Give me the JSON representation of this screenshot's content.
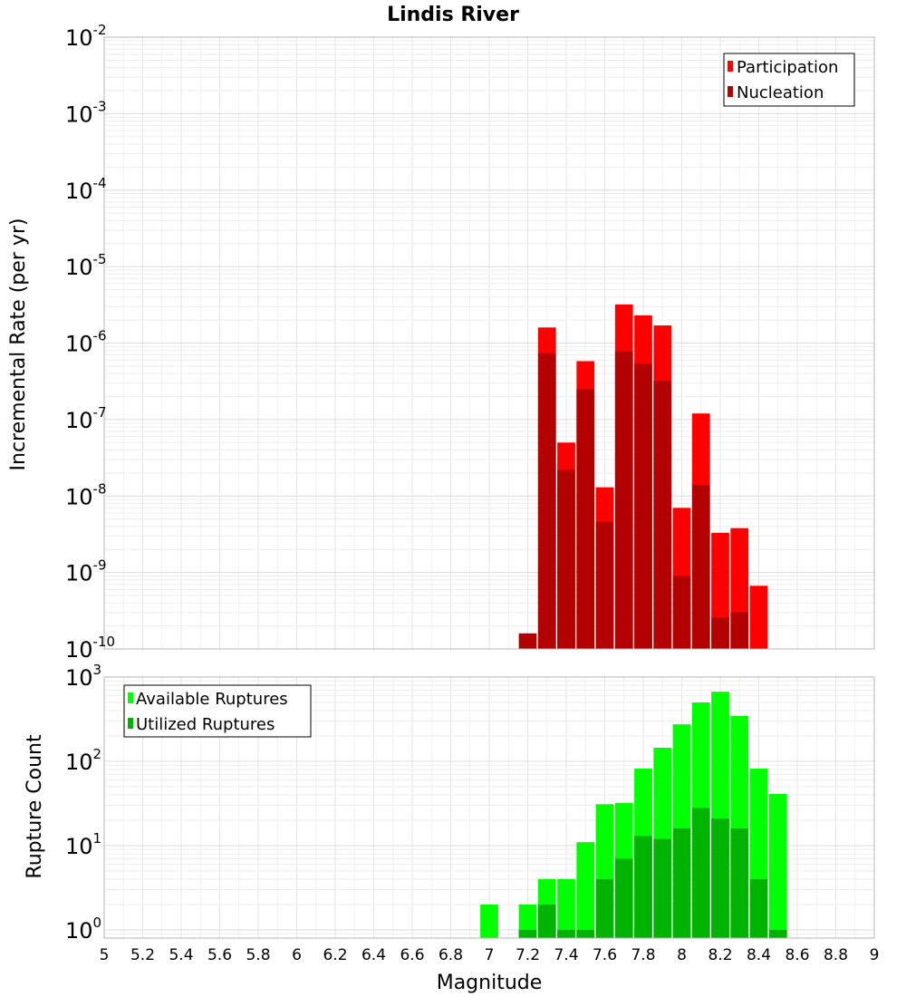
{
  "chart_data": [
    {
      "type": "bar",
      "title": "Lindis River",
      "ylabel": "Incremental Rate (per yr)",
      "yscale": "log",
      "ylim": [
        1e-10,
        0.01
      ],
      "xlim": [
        5,
        9
      ],
      "bin_width": 0.1,
      "grid": true,
      "legend_position": "top-right",
      "y_ticks": [
        {
          "base": "10",
          "exp": "-10"
        },
        {
          "base": "10",
          "exp": "-9"
        },
        {
          "base": "10",
          "exp": "-8"
        },
        {
          "base": "10",
          "exp": "-7"
        },
        {
          "base": "10",
          "exp": "-6"
        },
        {
          "base": "10",
          "exp": "-5"
        },
        {
          "base": "10",
          "exp": "-4"
        },
        {
          "base": "10",
          "exp": "-3"
        },
        {
          "base": "10",
          "exp": "-2"
        }
      ],
      "series": [
        {
          "name": "Participation",
          "color": "#ff0000",
          "x": [
            7.3,
            7.4,
            7.5,
            7.6,
            7.7,
            7.8,
            7.9,
            8.0,
            8.1,
            8.2,
            8.3,
            8.4
          ],
          "values": [
            1.6e-06,
            5e-08,
            5.8e-07,
            1.3e-08,
            3.2e-06,
            2.3e-06,
            1.7e-06,
            7e-09,
            1.2e-07,
            3.3e-09,
            3.8e-09,
            6.7e-10
          ]
        },
        {
          "name": "Nucleation",
          "color": "#b30000",
          "x": [
            7.2,
            7.3,
            7.4,
            7.5,
            7.6,
            7.7,
            7.8,
            7.9,
            8.0,
            8.1,
            8.2,
            8.3
          ],
          "values": [
            1.6e-10,
            7.3e-07,
            2.2e-08,
            2.5e-07,
            4.6e-09,
            7.8e-07,
            5.4e-07,
            3.2e-07,
            9e-10,
            1.4e-08,
            2.6e-10,
            3e-10
          ]
        }
      ]
    },
    {
      "type": "bar",
      "ylabel": "Rupture Count",
      "xlabel": "Magnitude",
      "yscale": "log",
      "ylim": [
        0.8,
        1000
      ],
      "xlim": [
        5,
        9
      ],
      "bin_width": 0.1,
      "grid": true,
      "legend_position": "top-left",
      "x_ticks": [
        "5",
        "5.2",
        "5.4",
        "5.6",
        "5.8",
        "6",
        "6.2",
        "6.4",
        "6.6",
        "6.8",
        "7",
        "7.2",
        "7.4",
        "7.6",
        "7.8",
        "8",
        "8.2",
        "8.4",
        "8.6",
        "8.8",
        "9"
      ],
      "y_ticks": [
        {
          "base": "10",
          "exp": "0"
        },
        {
          "base": "10",
          "exp": "1"
        },
        {
          "base": "10",
          "exp": "2"
        },
        {
          "base": "10",
          "exp": "3"
        }
      ],
      "series": [
        {
          "name": "Available Ruptures",
          "color": "#00ff00",
          "x": [
            7.0,
            7.2,
            7.3,
            7.4,
            7.5,
            7.6,
            7.7,
            7.8,
            7.9,
            8.0,
            8.1,
            8.2,
            8.3,
            8.4,
            8.5
          ],
          "values": [
            2,
            2,
            4,
            4,
            11,
            31,
            32,
            82,
            145,
            275,
            500,
            670,
            345,
            82,
            41
          ]
        },
        {
          "name": "Utilized Ruptures",
          "color": "#00b300",
          "x": [
            7.2,
            7.3,
            7.4,
            7.5,
            7.6,
            7.7,
            7.8,
            7.9,
            8.0,
            8.1,
            8.2,
            8.3,
            8.4,
            8.5
          ],
          "values": [
            1,
            2,
            1,
            1,
            4,
            7,
            13,
            12,
            16,
            28,
            21,
            16,
            4,
            1
          ]
        }
      ]
    }
  ]
}
